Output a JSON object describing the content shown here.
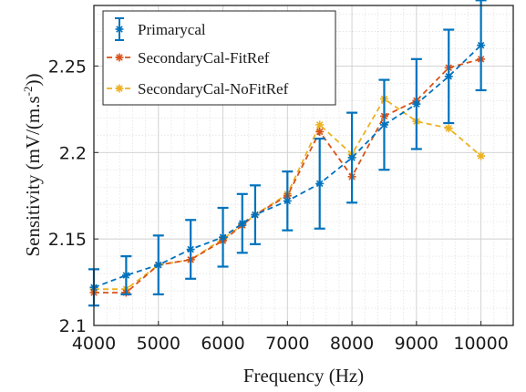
{
  "chart_data": {
    "type": "line",
    "xlabel": "Frequency (Hz)",
    "ylabel_main": "Sensitivity (mV/(m.s",
    "ylabel_sup": "-2",
    "ylabel_end": "))",
    "xlim": [
      4000,
      10500
    ],
    "ylim": [
      2.1,
      2.285
    ],
    "xticks": [
      4000,
      5000,
      6000,
      7000,
      8000,
      9000,
      10000
    ],
    "xtick_labels": [
      "4000",
      "5000",
      "6000",
      "7000",
      "8000",
      "9000",
      "10000"
    ],
    "yticks": [
      2.1,
      2.15,
      2.2,
      2.25
    ],
    "ytick_labels": [
      "2.1",
      "2.15",
      "2.2",
      "2.25"
    ],
    "grid": true,
    "minor_grid": true,
    "legend_position": "top-left",
    "series": [
      {
        "name": "Primarycal",
        "color": "#0072BD",
        "marker": "asterisk",
        "x": [
          4000,
          4500,
          5000,
          5500,
          6000,
          6300,
          6500,
          7000,
          7500,
          8000,
          8500,
          9000,
          9500,
          10000
        ],
        "y": [
          2.122,
          2.129,
          2.135,
          2.144,
          2.151,
          2.159,
          2.164,
          2.172,
          2.182,
          2.197,
          2.216,
          2.228,
          2.244,
          2.262
        ],
        "err": [
          0.0105,
          0.011,
          0.017,
          0.017,
          0.017,
          0.017,
          0.017,
          0.017,
          0.026,
          0.026,
          0.026,
          0.026,
          0.027,
          0.026
        ]
      },
      {
        "name": "SecondaryCal-FitRef",
        "color": "#D95319",
        "marker": "asterisk",
        "x": [
          4000,
          4500,
          5000,
          5500,
          6000,
          6300,
          6500,
          7000,
          7500,
          8000,
          8500,
          9000,
          9500,
          10000
        ],
        "y": [
          2.119,
          2.119,
          2.135,
          2.138,
          2.149,
          2.158,
          2.164,
          2.175,
          2.212,
          2.186,
          2.221,
          2.23,
          2.249,
          2.254
        ]
      },
      {
        "name": "SecondaryCal-NoFitRef",
        "color": "#EDB120",
        "marker": "asterisk",
        "x": [
          4000,
          4500,
          5000,
          5500,
          6000,
          6300,
          6500,
          7000,
          7500,
          8000,
          8500,
          9000,
          9500,
          10000
        ],
        "y": [
          2.121,
          2.121,
          2.135,
          2.138,
          2.15,
          2.158,
          2.164,
          2.176,
          2.216,
          2.199,
          2.231,
          2.218,
          2.214,
          2.198
        ]
      }
    ]
  },
  "legend": {
    "items": [
      {
        "label": "Primarycal",
        "color": "#0072BD",
        "errorbar": true
      },
      {
        "label": "SecondaryCal-FitRef",
        "color": "#D95319",
        "errorbar": false
      },
      {
        "label": "SecondaryCal-NoFitRef",
        "color": "#EDB120",
        "errorbar": false
      }
    ]
  }
}
